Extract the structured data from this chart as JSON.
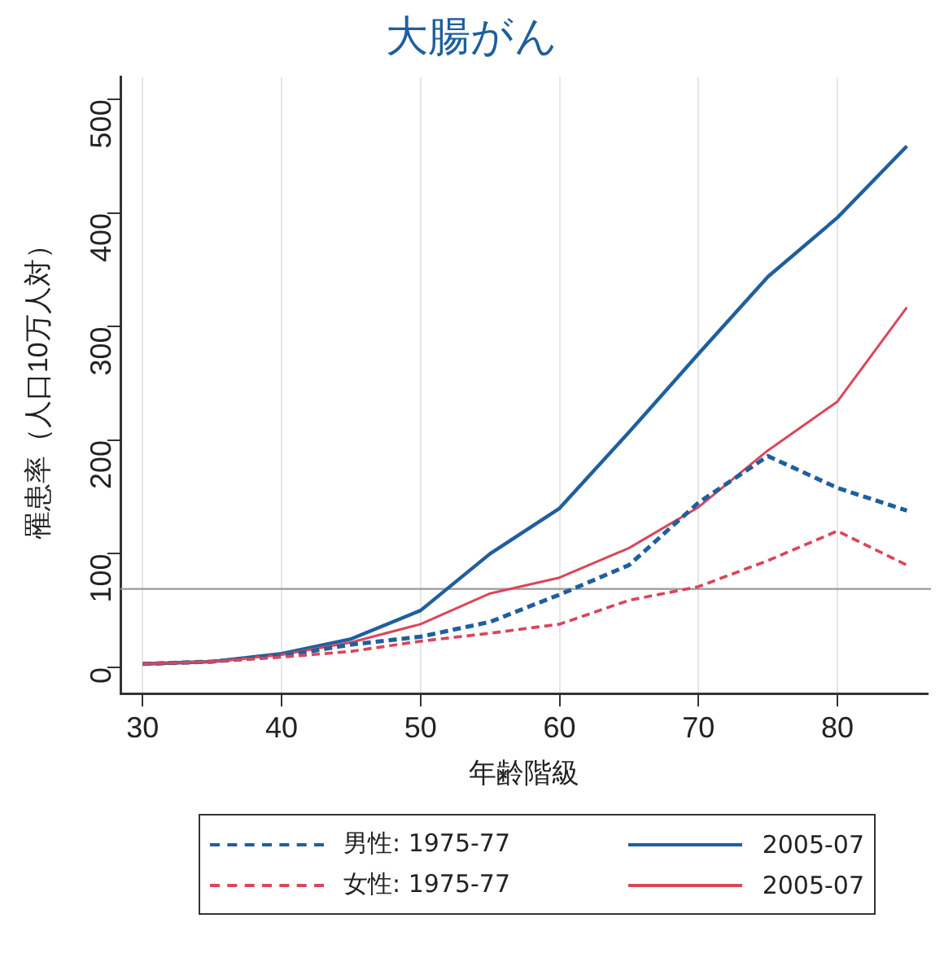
{
  "chart_data": {
    "type": "line",
    "title": "大腸がん",
    "xlabel": "年齢階級",
    "ylabel": "罹患率（人口10万人対）",
    "x": [
      30,
      35,
      40,
      45,
      50,
      55,
      60,
      65,
      70,
      75,
      80,
      85
    ],
    "xlim": [
      28.4,
      86.5
    ],
    "xticks": [
      30,
      40,
      50,
      60,
      70,
      80
    ],
    "ylim": [
      -23,
      520
    ],
    "yticks": [
      0,
      100,
      200,
      300,
      400,
      500
    ],
    "grid": "x",
    "legend": "bottom",
    "marker": "none",
    "ref_lines": [
      {
        "axis": "y",
        "value": 69,
        "color": "#999999"
      }
    ],
    "series": [
      {
        "name": "男性: 1975-77",
        "color": "#1f5f9e",
        "line_style": "dashed",
        "values": [
          3,
          5,
          10,
          20,
          27,
          40,
          64,
          90,
          145,
          186,
          158,
          138
        ]
      },
      {
        "name": "2005-07",
        "color": "#1f5f9e",
        "line_style": "solid",
        "values": [
          3,
          5,
          12,
          25,
          50,
          100,
          140,
          207,
          276,
          344,
          396,
          459
        ]
      },
      {
        "name": "女性: 1975-77",
        "color": "#d9475a",
        "line_style": "dashed",
        "values": [
          3,
          5,
          9,
          14,
          23,
          30,
          38,
          59,
          71,
          94,
          120,
          90
        ]
      },
      {
        "name": "2005-07",
        "color": "#d9475a",
        "line_style": "solid",
        "values": [
          3,
          5,
          11,
          22,
          38,
          65,
          79,
          105,
          141,
          191,
          234,
          317
        ]
      }
    ]
  }
}
